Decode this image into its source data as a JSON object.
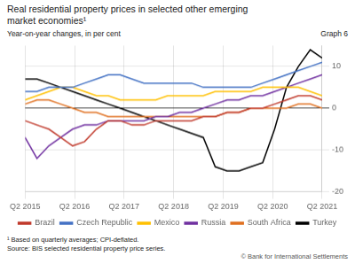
{
  "chart_data": {
    "type": "line",
    "title": "Real residential property prices in selected other emerging\nmarket economies¹",
    "subtitle": "Year-on-year changes, in per cent",
    "annotations": [
      "Graph 6",
      "¹ Based on quarterly averages; CPI-deflated.",
      "Source: BIS selected residential property price series.",
      "© Bank for International Settlements"
    ],
    "x": [
      0,
      0.96,
      1.92,
      2.88,
      3.84,
      4.8,
      5.76,
      6.72,
      7.68,
      8.64,
      9.6,
      10.56,
      11.52,
      12.48,
      13.44,
      14.4,
      15.36,
      16.32,
      17.28,
      18.24,
      19.2,
      20.16,
      21.12,
      22.08,
      23.04,
      24
    ],
    "xlim": [
      0,
      24
    ],
    "xticks": [
      {
        "value": 0,
        "label": "Q2 2015"
      },
      {
        "value": 4,
        "label": "Q2 2016"
      },
      {
        "value": 8,
        "label": "Q2 2017"
      },
      {
        "value": 12,
        "label": "Q2 2018"
      },
      {
        "value": 16,
        "label": "Q2 2019"
      },
      {
        "value": 20,
        "label": "Q2 2020"
      },
      {
        "value": 24,
        "label": "Q2 2021"
      }
    ],
    "ylim": [
      -20,
      15
    ],
    "yticks": [
      -20,
      -10,
      0,
      10
    ],
    "grid": true,
    "legend": "bottom",
    "series": [
      {
        "name": "Brazil",
        "color": "#c0392b",
        "values": [
          -3,
          -4,
          -5,
          -7,
          -9,
          -8,
          -5,
          -3,
          -3,
          -4,
          -4,
          -3,
          -3,
          -3,
          -3,
          -2,
          -2,
          -1,
          -1,
          0,
          0,
          1,
          2,
          3,
          3,
          2
        ]
      },
      {
        "name": "Czech Republic",
        "color": "#4472c4",
        "values": [
          4,
          4,
          5,
          5,
          5,
          6,
          7,
          8,
          8,
          7,
          6,
          6,
          6,
          6,
          6,
          5,
          5,
          5,
          5,
          5,
          6,
          7,
          8,
          9,
          10,
          11
        ]
      },
      {
        "name": "Mexico",
        "color": "#ffc000",
        "values": [
          2,
          3,
          4,
          5,
          5,
          4,
          3,
          3,
          2,
          2,
          2,
          2,
          3,
          3,
          3,
          3,
          4,
          4,
          4,
          4,
          5,
          5,
          5,
          5,
          4,
          3
        ]
      },
      {
        "name": "Russia",
        "color": "#7030a0",
        "values": [
          -7,
          -12,
          -9,
          -7,
          -5,
          -4,
          -4,
          -3,
          -3,
          -3,
          -3,
          -2,
          -2,
          -1,
          -1,
          0,
          1,
          2,
          2,
          3,
          3,
          4,
          5,
          6,
          7,
          8
        ]
      },
      {
        "name": "South Africa",
        "color": "#e07020",
        "values": [
          1,
          2,
          2,
          1,
          0,
          -1,
          -1,
          -2,
          -2,
          -2,
          -2,
          -2,
          -2,
          -2,
          -2,
          -2,
          -2,
          -1,
          -1,
          0,
          0,
          0,
          0,
          1,
          1,
          0
        ]
      },
      {
        "name": "Turkey",
        "color": "#000000",
        "values": [
          7,
          7,
          6,
          5,
          4,
          3,
          2,
          1,
          0,
          -1,
          -2,
          -3,
          -4,
          -5,
          -6,
          -7,
          -14,
          -15,
          -15,
          -14,
          -13,
          -5,
          5,
          10,
          14,
          12
        ]
      }
    ]
  }
}
